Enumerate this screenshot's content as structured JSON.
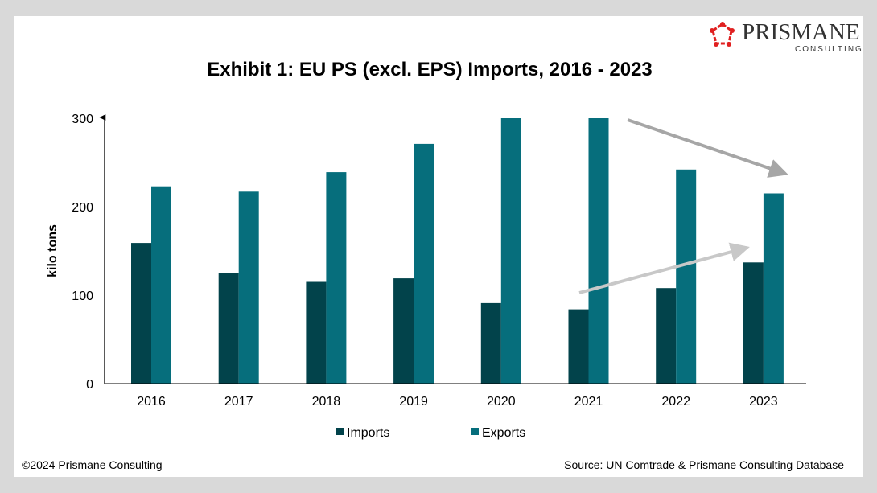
{
  "title": "Exhibit 1: EU PS (excl. EPS) Imports, 2016 - 2023",
  "logo": {
    "name": "PRISMANE",
    "sub": "CONSULTING"
  },
  "footer": {
    "copyright": "©2024 Prismane Consulting",
    "source": "Source: UN Comtrade &  Prismane Consulting Database"
  },
  "chart_data": {
    "type": "bar",
    "title": "Exhibit 1: EU PS (excl. EPS) Imports, 2016 - 2023",
    "xlabel": "",
    "ylabel": "kilo tons",
    "ylim": [
      0,
      300
    ],
    "yticks": [
      0,
      100,
      200,
      300
    ],
    "categories": [
      "2016",
      "2017",
      "2018",
      "2019",
      "2020",
      "2021",
      "2022",
      "2023"
    ],
    "series": [
      {
        "name": "Imports",
        "color": "#02434b",
        "values": [
          159,
          125,
          115,
          119,
          91,
          84,
          108,
          137
        ]
      },
      {
        "name": "Exports",
        "color": "#066e7c",
        "values": [
          223,
          217,
          239,
          271,
          300,
          300,
          242,
          215
        ]
      }
    ],
    "legend": "bottom",
    "grid": false,
    "annotations": [
      {
        "type": "arrow",
        "direction": "down",
        "color": "#a6a6a6",
        "from": "2021",
        "to": "2023"
      },
      {
        "type": "arrow",
        "direction": "up",
        "color": "#c8c8c8",
        "from": "2021",
        "to": "2023"
      }
    ]
  }
}
